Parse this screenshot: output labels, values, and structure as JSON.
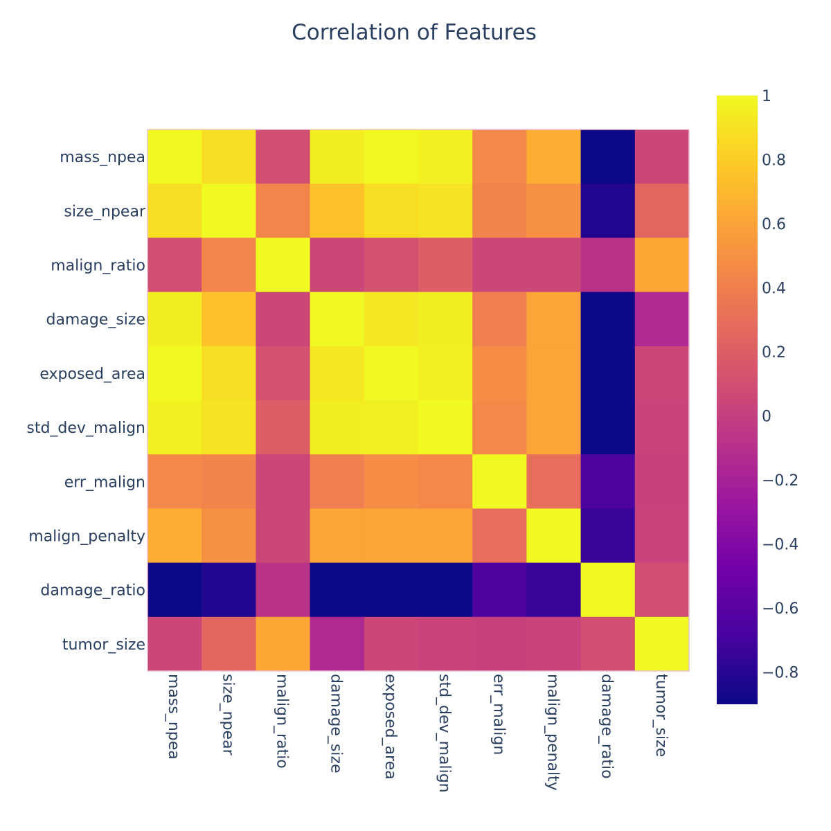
{
  "chart_data": {
    "type": "heatmap",
    "title": "Correlation of Features",
    "xlabel": "",
    "ylabel": "",
    "features": [
      "mass_npea",
      "size_npear",
      "malign_ratio",
      "damage_size",
      "exposed_area",
      "std_dev_malign",
      "err_malign",
      "malign_penalty",
      "damage_ratio",
      "tumor_size"
    ],
    "z": [
      [
        1.0,
        0.88,
        0.1,
        0.95,
        0.99,
        0.97,
        0.45,
        0.65,
        -0.9,
        0.05
      ],
      [
        0.88,
        1.0,
        0.44,
        0.75,
        0.88,
        0.9,
        0.43,
        0.5,
        -0.82,
        0.25
      ],
      [
        0.1,
        0.44,
        1.0,
        0.05,
        0.12,
        0.2,
        0.05,
        0.05,
        -0.08,
        0.62
      ],
      [
        0.95,
        0.75,
        0.05,
        1.0,
        0.92,
        0.95,
        0.4,
        0.6,
        -0.9,
        -0.15
      ],
      [
        0.99,
        0.88,
        0.12,
        0.92,
        1.0,
        0.96,
        0.48,
        0.6,
        -0.9,
        0.05
      ],
      [
        0.97,
        0.9,
        0.2,
        0.95,
        0.96,
        1.0,
        0.45,
        0.6,
        -0.9,
        0.03
      ],
      [
        0.45,
        0.43,
        0.05,
        0.4,
        0.48,
        0.45,
        1.0,
        0.3,
        -0.65,
        0.02
      ],
      [
        0.65,
        0.5,
        0.05,
        0.6,
        0.6,
        0.6,
        0.3,
        1.0,
        -0.75,
        0.03
      ],
      [
        -0.9,
        -0.82,
        -0.08,
        -0.9,
        -0.9,
        -0.9,
        -0.65,
        -0.75,
        1.0,
        0.1
      ],
      [
        0.05,
        0.25,
        0.62,
        -0.15,
        0.05,
        0.03,
        0.02,
        0.03,
        0.1,
        1.0
      ]
    ],
    "zmin": -0.9,
    "zmax": 1.0,
    "colorscale": [
      "#0d0887",
      "#46039f",
      "#7201a8",
      "#9c179e",
      "#bd3786",
      "#d8576b",
      "#ed7953",
      "#fb9f3a",
      "#fdca26",
      "#f0f921"
    ],
    "colorbar_ticks": [
      1,
      0.8,
      0.6,
      0.4,
      0.2,
      0,
      -0.2,
      -0.4,
      -0.6,
      -0.8
    ],
    "colorbar_tick_labels": [
      "1",
      "0.8",
      "0.6",
      "0.4",
      "0.2",
      "0",
      "−0.2",
      "−0.4",
      "−0.6",
      "−0.8"
    ],
    "grid": false,
    "legend": "colorbar-right"
  }
}
